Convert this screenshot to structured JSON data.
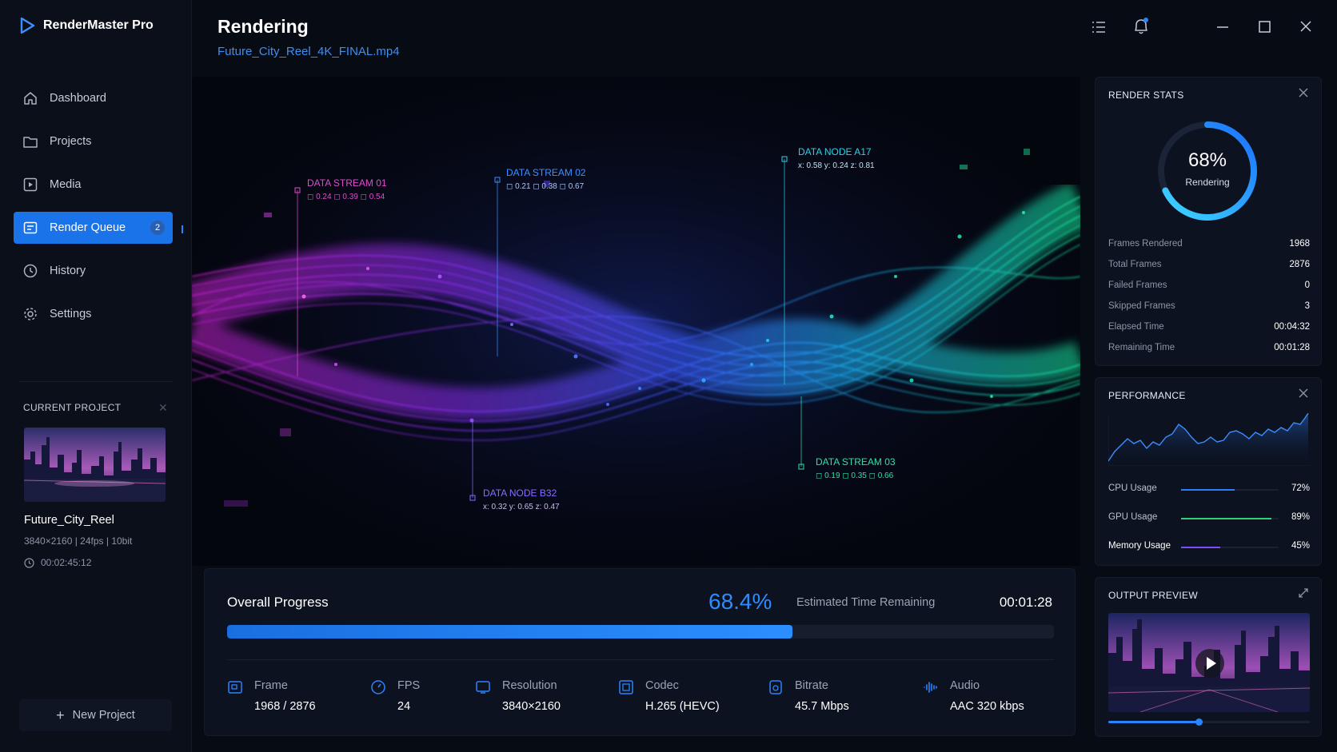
{
  "app": {
    "name": "RenderMaster Pro"
  },
  "sidebar": {
    "items": [
      {
        "label": "Dashboard",
        "icon": "home-icon"
      },
      {
        "label": "Projects",
        "icon": "folder-icon"
      },
      {
        "label": "Media",
        "icon": "media-icon"
      },
      {
        "label": "Render Queue",
        "icon": "render-queue-icon",
        "badge": "2",
        "active": true
      },
      {
        "label": "History",
        "icon": "history-icon"
      },
      {
        "label": "Settings",
        "icon": "gear-icon"
      }
    ],
    "current_project": {
      "label": "CURRENT PROJECT",
      "name": "Future_City_Reel",
      "meta": "3840×2160  |  24fps  |  10bit",
      "duration": "00:02:45:12"
    },
    "new_project_label": "New Project"
  },
  "header": {
    "title": "Rendering",
    "filename": "Future_City_Reel_4K_FINAL.mp4"
  },
  "hero": {
    "annotations": [
      {
        "title": "DATA STREAM 01",
        "values": "◻ 0.24   ◻ 0.39   ◻ 0.54",
        "color": "#e04bd0"
      },
      {
        "title": "DATA STREAM 02",
        "values": "◻ 0.21   ◻ 0.38   ◻ 0.67",
        "color": "#3d8fff"
      },
      {
        "title": "DATA NODE A17",
        "values": "x: 0.58   y: 0.24   z: 0.81",
        "color": "#29d3e8"
      },
      {
        "title": "DATA STREAM 03",
        "values": "◻ 0.19   ◻ 0.35   ◻ 0.66",
        "color": "#2fe0a6"
      },
      {
        "title": "DATA NODE B32",
        "values": "x: 0.32   y: 0.65   z: 0.47",
        "color": "#8a6cff"
      }
    ]
  },
  "progress": {
    "label": "Overall Progress",
    "percent_text": "68.4%",
    "percent": 68.4,
    "eta_label": "Estimated Time Remaining",
    "eta": "00:01:28",
    "stats": [
      {
        "label": "Frame",
        "value": "1968 / 2876",
        "icon": "frame-icon"
      },
      {
        "label": "FPS",
        "value": "24",
        "icon": "fps-icon"
      },
      {
        "label": "Resolution",
        "value": "3840×2160",
        "icon": "resolution-icon"
      },
      {
        "label": "Codec",
        "value": "H.265 (HEVC)",
        "icon": "codec-icon"
      },
      {
        "label": "Bitrate",
        "value": "45.7 Mbps",
        "icon": "bitrate-icon"
      },
      {
        "label": "Audio",
        "value": "AAC 320 kbps",
        "icon": "audio-icon"
      }
    ]
  },
  "render_stats": {
    "title": "RENDER STATS",
    "ring_value": "68%",
    "ring_label": "Rendering",
    "ring_fraction": 0.68,
    "rows": [
      {
        "label": "Frames Rendered",
        "value": "1968"
      },
      {
        "label": "Total Frames",
        "value": "2876"
      },
      {
        "label": "Failed Frames",
        "value": "0"
      },
      {
        "label": "Skipped Frames",
        "value": "3"
      },
      {
        "label": "Elapsed Time",
        "value": "00:04:32"
      },
      {
        "label": "Remaining Time",
        "value": "00:01:28"
      }
    ]
  },
  "performance": {
    "title": "PERFORMANCE",
    "rows": [
      {
        "label": "CPU Usage",
        "value": "72%",
        "level": 0.55,
        "color": "#2b7fff"
      },
      {
        "label": "GPU Usage",
        "value": "89%",
        "level": 0.93,
        "color": "#2fd07a"
      },
      {
        "label": "Memory Usage",
        "value": "45%",
        "level": 0.4,
        "color": "#7b4dff"
      }
    ]
  },
  "output_preview": {
    "title": "OUTPUT PREVIEW",
    "scrub_fraction": 0.45
  },
  "colors": {
    "accent": "#1a73e8",
    "background": "#070b14",
    "panel": "#0c1220"
  }
}
